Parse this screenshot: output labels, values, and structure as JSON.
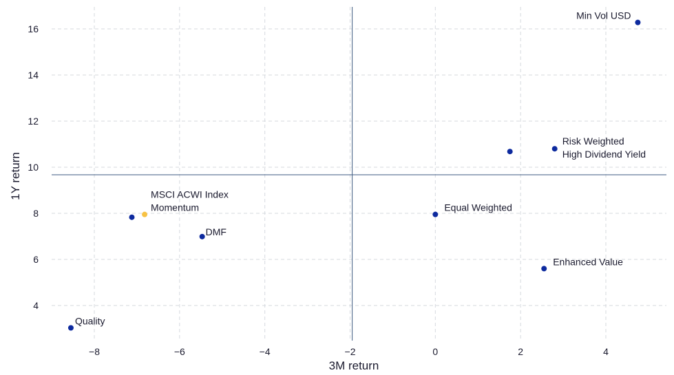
{
  "chart_data": {
    "type": "scatter",
    "xlabel": "3M return",
    "ylabel": "1Y return",
    "xlim": [
      -9.0,
      5.4
    ],
    "ylim": [
      2.6,
      16.9
    ],
    "xticks": [
      -8,
      -6,
      -4,
      -2,
      0,
      2,
      4
    ],
    "xtick_labels": [
      "−8",
      "−6",
      "−4",
      "−2",
      "0",
      "2",
      "4"
    ],
    "yticks": [
      4,
      6,
      8,
      10,
      12,
      14,
      16
    ],
    "ytick_labels": [
      "4",
      "6",
      "8",
      "10",
      "12",
      "14",
      "16"
    ],
    "grid": true,
    "reference_lines": {
      "vertical_x": -1.95,
      "horizontal_y": 9.67,
      "color": "#3d5a80"
    },
    "colors": {
      "default_point": "#0d2a9e",
      "highlight_point": "#f7c244",
      "text": "#1a1a2e",
      "grid": "#d5d9de"
    },
    "points": [
      {
        "x": 4.75,
        "y": 16.28,
        "lines": [
          "Min Vol USD"
        ],
        "highlight": false
      },
      {
        "x": 2.8,
        "y": 10.8,
        "lines": [
          "Risk Weighted",
          "High Dividend Yield"
        ],
        "highlight": false
      },
      {
        "x": 1.75,
        "y": 10.68,
        "lines": [],
        "highlight": false
      },
      {
        "x": 0.0,
        "y": 7.95,
        "lines": [
          "Equal Weighted"
        ],
        "highlight": false
      },
      {
        "x": 2.55,
        "y": 5.6,
        "lines": [
          "Enhanced Value"
        ],
        "highlight": false
      },
      {
        "x": -6.82,
        "y": 7.95,
        "lines": [
          "MSCI ACWI Index",
          "Momentum"
        ],
        "highlight": true
      },
      {
        "x": -7.12,
        "y": 7.83,
        "lines": [],
        "highlight": false
      },
      {
        "x": -5.47,
        "y": 6.99,
        "lines": [
          "DMF"
        ],
        "highlight": false
      },
      {
        "x": -8.55,
        "y": 3.03,
        "lines": [
          "Quality"
        ],
        "highlight": false
      }
    ]
  }
}
